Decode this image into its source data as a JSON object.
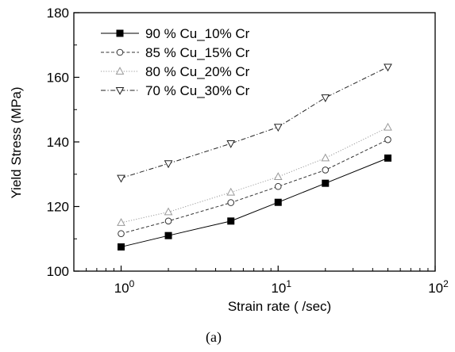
{
  "chart_data": {
    "type": "line",
    "x_scale": "log",
    "xlim": [
      0.5,
      100
    ],
    "ylim": [
      100,
      180
    ],
    "x": [
      1,
      2,
      5,
      10,
      20,
      50
    ],
    "y_ticks": [
      "100",
      "120",
      "140",
      "160",
      "180"
    ],
    "xlabel": "Strain rate ( /sec)",
    "ylabel": "Yield Stress (MPa)",
    "caption": "(a)",
    "legend_position": "top-left",
    "grid": false,
    "series": [
      {
        "name": "90 % Cu_10% Cr",
        "marker": "filled-square",
        "line_style": "solid",
        "color": "#000000",
        "values": [
          107.5,
          111,
          115.5,
          121.3,
          127.2,
          135
        ]
      },
      {
        "name": "85 % Cu_15% Cr",
        "marker": "open-circle",
        "line_style": "dashed",
        "color": "#333333",
        "values": [
          111.6,
          115.5,
          121.2,
          126.2,
          131.3,
          140.7
        ]
      },
      {
        "name": "80 % Cu_20% Cr",
        "marker": "open-triangle-up",
        "line_style": "dotted",
        "color": "#9a9a9a",
        "values": [
          115,
          118.3,
          124.4,
          129.2,
          135,
          144.5
        ]
      },
      {
        "name": "70 % Cu_30% Cr",
        "marker": "open-triangle-down",
        "line_style": "dash-dot",
        "color": "#222222",
        "values": [
          128.8,
          133.3,
          139.5,
          144.6,
          153.7,
          163.2
        ]
      }
    ]
  }
}
